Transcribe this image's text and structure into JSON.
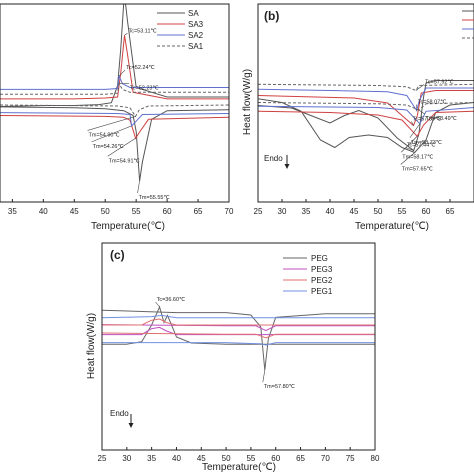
{
  "panels": [
    {
      "id": "a",
      "label": "",
      "xlabel": "Temperature(℃)",
      "ylabel": "",
      "xlim": [
        33,
        70
      ],
      "xticks": [
        35,
        40,
        45,
        50,
        55,
        60,
        65,
        70
      ],
      "legend": [
        "SA",
        "SA3",
        "SA2",
        "SA1"
      ],
      "endo": "",
      "series": [
        {
          "name": "SA",
          "color": "#555555",
          "dash": "",
          "cool": [
            [
              33,
              10
            ],
            [
              40,
              9
            ],
            [
              45,
              9
            ],
            [
              49,
              8
            ],
            [
              51,
              6
            ],
            [
              52,
              -12
            ],
            [
              52.5,
              -50
            ],
            [
              53,
              -100
            ],
            [
              53.17,
              -105
            ],
            [
              53.6,
              -80
            ],
            [
              55,
              -10
            ],
            [
              60,
              0
            ],
            [
              70,
              0
            ]
          ],
          "heat": [
            [
              33,
              -18
            ],
            [
              45,
              -17
            ],
            [
              50,
              -16
            ],
            [
              53,
              -14
            ],
            [
              54.5,
              -9
            ],
            [
              55,
              8
            ],
            [
              55.55,
              60
            ],
            [
              56,
              40
            ],
            [
              57.5,
              -5
            ],
            [
              60,
              -14
            ],
            [
              70,
              -15
            ]
          ]
        },
        {
          "name": "SA3",
          "color": "#d04040",
          "dash": "",
          "cool": [
            [
              33,
              2
            ],
            [
              45,
              2
            ],
            [
              50,
              1
            ],
            [
              52,
              0
            ],
            [
              52.5,
              -25
            ],
            [
              53.11,
              -65
            ],
            [
              53.6,
              -45
            ],
            [
              54.5,
              -5
            ],
            [
              60,
              2
            ],
            [
              70,
              2
            ]
          ],
          "heat": [
            [
              33,
              -9
            ],
            [
              50,
              -8
            ],
            [
              53,
              -7
            ],
            [
              54,
              -4
            ],
            [
              54.91,
              15
            ],
            [
              55.6,
              8
            ],
            [
              57,
              -5
            ],
            [
              70,
              -7
            ]
          ]
        },
        {
          "name": "SA2",
          "color": "#6070d0",
          "dash": "",
          "cool": [
            [
              33,
              -8
            ],
            [
              50,
              -8
            ],
            [
              52,
              -9
            ],
            [
              52.24,
              -22
            ],
            [
              52.8,
              -14
            ],
            [
              54,
              -10
            ],
            [
              70,
              -10
            ]
          ],
          "heat": [
            [
              33,
              -12
            ],
            [
              52,
              -11
            ],
            [
              54,
              -10
            ],
            [
              54.26,
              2
            ],
            [
              55,
              -3
            ],
            [
              56,
              -10
            ],
            [
              70,
              -11
            ]
          ]
        },
        {
          "name": "SA1",
          "color": "#666666",
          "dash": "3,2",
          "cool": [
            [
              33,
              -3
            ],
            [
              50,
              -3
            ],
            [
              52,
              -4
            ],
            [
              52.23,
              -14
            ],
            [
              52.8,
              -8
            ],
            [
              54,
              -5
            ],
            [
              70,
              -5
            ]
          ],
          "heat": [
            [
              33,
              -20
            ],
            [
              52,
              -19
            ],
            [
              54,
              -17
            ],
            [
              54.9,
              -8
            ],
            [
              55.5,
              -15
            ],
            [
              57,
              -19
            ],
            [
              70,
              -20
            ]
          ]
        }
      ],
      "annotations": [
        {
          "text": "Tc=53.17℃",
          "x": 53.17,
          "y": -105,
          "dx": -8,
          "dy": -3
        },
        {
          "text": "Tc=53.11℃",
          "x": 53.11,
          "y": -65,
          "dx": 3,
          "dy": -2
        },
        {
          "text": "Tc=52.24℃",
          "x": 52.24,
          "y": -22,
          "dx": 6,
          "dy": -6
        },
        {
          "text": "Tc=52.23℃",
          "x": 52.23,
          "y": -14,
          "dx": 10,
          "dy": 0
        },
        {
          "text": "Tm=54.90℃",
          "x": 54.9,
          "y": -8,
          "dx": -48,
          "dy": 14
        },
        {
          "text": "Tm=54.26℃",
          "x": 54.26,
          "y": 2,
          "dx": -40,
          "dy": 16
        },
        {
          "text": "Tm=54.91℃",
          "x": 54.91,
          "y": 15,
          "dx": -28,
          "dy": 18
        },
        {
          "text": "Tm=55.55℃",
          "x": 55.55,
          "y": 60,
          "dx": -2,
          "dy": 12
        }
      ]
    },
    {
      "id": "b",
      "label": "(b)",
      "xlabel": "Temperature(℃)",
      "ylabel": "Heat flow(W/g)",
      "xlim": [
        25,
        70
      ],
      "xticks": [
        25,
        30,
        35,
        40,
        45,
        50,
        55,
        60,
        65
      ],
      "legend": [],
      "endo": "Endo",
      "series": [
        {
          "name": "",
          "color": "#555555",
          "dash": "",
          "cool": [
            [
              25,
              2
            ],
            [
              32,
              4
            ],
            [
              36,
              10
            ],
            [
              40,
              16
            ],
            [
              43,
              10
            ],
            [
              46,
              6
            ],
            [
              50,
              12
            ],
            [
              54,
              28
            ],
            [
              57.44,
              38
            ],
            [
              58.5,
              25
            ],
            [
              59.5,
              -5
            ],
            [
              60,
              -16
            ],
            [
              62,
              -18
            ],
            [
              70,
              -18
            ]
          ],
          "heat": [
            [
              25,
              -25
            ],
            [
              30,
              -22
            ],
            [
              34,
              -15
            ],
            [
              38,
              8
            ],
            [
              41,
              14
            ],
            [
              44,
              6
            ],
            [
              48,
              4
            ],
            [
              52,
              6
            ],
            [
              55,
              14
            ],
            [
              57.65,
              18
            ],
            [
              60,
              8
            ],
            [
              62,
              -14
            ],
            [
              65,
              -20
            ],
            [
              70,
              -22
            ]
          ]
        },
        {
          "name": "",
          "color": "#d04040",
          "dash": "",
          "cool": [
            [
              25,
              -6
            ],
            [
              35,
              -5
            ],
            [
              45,
              -4
            ],
            [
              52,
              0
            ],
            [
              55,
              10
            ],
            [
              57.39,
              18
            ],
            [
              58.2,
              10
            ],
            [
              59,
              -8
            ],
            [
              62,
              -10
            ],
            [
              70,
              -10
            ]
          ],
          "heat": [
            [
              25,
              -15
            ],
            [
              40,
              -14
            ],
            [
              50,
              -12
            ],
            [
              55,
              -8
            ],
            [
              58.17,
              5
            ],
            [
              59.5,
              -4
            ],
            [
              62,
              -14
            ],
            [
              70,
              -15
            ]
          ]
        },
        {
          "name": "",
          "color": "#6070d0",
          "dash": "",
          "cool": [
            [
              25,
              -11
            ],
            [
              40,
              -10
            ],
            [
              52,
              -9
            ],
            [
              56,
              -6
            ],
            [
              58.07,
              6
            ],
            [
              58.6,
              -2
            ],
            [
              60,
              -12
            ],
            [
              70,
              -12
            ]
          ],
          "heat": [
            [
              25,
              -19
            ],
            [
              50,
              -18
            ],
            [
              56,
              -16
            ],
            [
              58.73,
              -5
            ],
            [
              60,
              -15
            ],
            [
              70,
              -18
            ]
          ]
        },
        {
          "name": "",
          "color": "#666666",
          "dash": "3,2",
          "cool": [
            [
              25,
              -15
            ],
            [
              50,
              -14
            ],
            [
              56,
              -13
            ],
            [
              57.92,
              -10
            ],
            [
              58.5,
              -14
            ],
            [
              70,
              -15
            ]
          ],
          "heat": [
            [
              25,
              -22
            ],
            [
              50,
              -21
            ],
            [
              56,
              -20
            ],
            [
              58.49,
              -16
            ],
            [
              60,
              -21
            ],
            [
              70,
              -22
            ]
          ]
        }
      ],
      "annotations": [
        {
          "text": "Tc=57.44℃",
          "x": 57.44,
          "y": 38,
          "dx": -8,
          "dy": -3
        },
        {
          "text": "Tc=57.39℃",
          "x": 57.39,
          "y": 18,
          "dx": -2,
          "dy": -4
        },
        {
          "text": "Tc=58.07℃",
          "x": 58.07,
          "y": 6,
          "dx": 0,
          "dy": -6
        },
        {
          "text": "Tc=57.92℃",
          "x": 57.92,
          "y": -10,
          "dx": 8,
          "dy": -6
        },
        {
          "text": "Tm=58.49℃",
          "x": 58.49,
          "y": -16,
          "dx": 6,
          "dy": 4
        },
        {
          "text": "Tm=58.73℃",
          "x": 58.73,
          "y": -5,
          "dx": -10,
          "dy": 14
        },
        {
          "text": "Tm=58.17℃",
          "x": 58.17,
          "y": 5,
          "dx": -16,
          "dy": 16
        },
        {
          "text": "Tm=57.65℃",
          "x": 57.65,
          "y": 18,
          "dx": -14,
          "dy": 12
        }
      ]
    },
    {
      "id": "c",
      "label": "(c)",
      "xlabel": "Temperature(℃)",
      "ylabel": "Heat flow(W/g)",
      "xlim": [
        25,
        80
      ],
      "xticks": [
        25,
        30,
        35,
        40,
        45,
        50,
        55,
        60,
        65,
        70,
        75,
        80
      ],
      "legend": [
        "PEG",
        "PEG3",
        "PEG2",
        "PEG1"
      ],
      "endo": "Endo",
      "series": [
        {
          "name": "PEG",
          "color": "#666666",
          "dash": "",
          "cool": [
            [
              25,
              26
            ],
            [
              30,
              26
            ],
            [
              33,
              24
            ],
            [
              35,
              10
            ],
            [
              36.6,
              -5
            ],
            [
              37.5,
              8
            ],
            [
              38.2,
              2
            ],
            [
              40,
              20
            ],
            [
              43,
              25
            ],
            [
              50,
              26
            ],
            [
              80,
              26
            ]
          ],
          "heat": [
            [
              25,
              -34
            ],
            [
              40,
              -32
            ],
            [
              50,
              -32
            ],
            [
              55,
              -30
            ],
            [
              57,
              -20
            ],
            [
              57.8,
              16
            ],
            [
              58.5,
              -10
            ],
            [
              60,
              -28
            ],
            [
              70,
              -31
            ],
            [
              80,
              -31
            ]
          ]
        },
        {
          "name": "PEG3",
          "color": "#c04fc0",
          "dash": "",
          "cool": [
            [
              25,
              18
            ],
            [
              33,
              18
            ],
            [
              35,
              13
            ],
            [
              36.6,
              12
            ],
            [
              38,
              15
            ],
            [
              40,
              18
            ],
            [
              80,
              18
            ]
          ],
          "heat": [
            [
              25,
              -22
            ],
            [
              50,
              -21
            ],
            [
              56,
              -21
            ],
            [
              58,
              -17
            ],
            [
              60,
              -21
            ],
            [
              80,
              -21
            ]
          ]
        },
        {
          "name": "PEG2",
          "color": "#e07070",
          "dash": "",
          "cool": [
            [
              25,
              10
            ],
            [
              33,
              10
            ],
            [
              35,
              6
            ],
            [
              36.6,
              5
            ],
            [
              38,
              8
            ],
            [
              40,
              10
            ],
            [
              80,
              10
            ]
          ],
          "heat": [
            [
              25,
              -15
            ],
            [
              50,
              -14
            ],
            [
              56,
              -14
            ],
            [
              58,
              -11
            ],
            [
              60,
              -14
            ],
            [
              80,
              -14
            ]
          ]
        },
        {
          "name": "PEG1",
          "color": "#7090e0",
          "dash": "",
          "cool": [
            [
              25,
              4
            ],
            [
              35,
              3
            ],
            [
              37,
              2
            ],
            [
              40,
              4
            ],
            [
              80,
              4
            ]
          ],
          "heat": [
            [
              25,
              -7
            ],
            [
              50,
              -7
            ],
            [
              57,
              -6
            ],
            [
              58,
              -5
            ],
            [
              60,
              -7
            ],
            [
              80,
              -7
            ]
          ]
        }
      ],
      "annotations": [
        {
          "text": "Tc=36.60℃",
          "x": 36.6,
          "y": -5,
          "dx": -4,
          "dy": -5
        },
        {
          "text": "Tm=57.80℃",
          "x": 57.8,
          "y": 16,
          "dx": -2,
          "dy": 12
        }
      ]
    }
  ]
}
